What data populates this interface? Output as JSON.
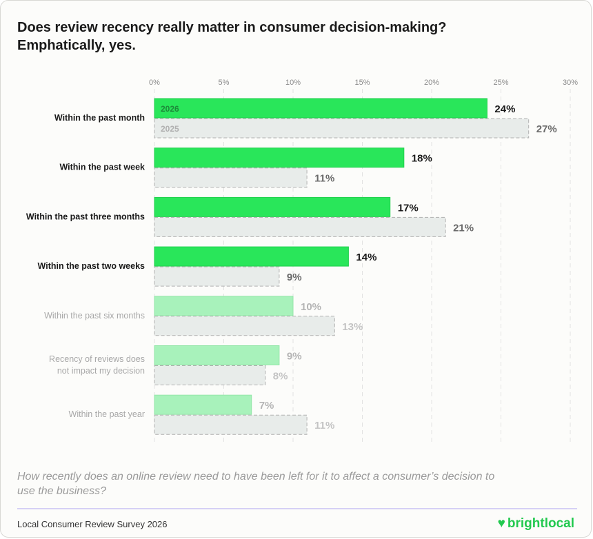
{
  "title_line1": "Does review recency really matter in consumer decision-making?",
  "title_line2": "Emphatically, yes.",
  "question": "How recently does an online review need to have been left for it to affect a consumer’s decision to use the business?",
  "source": "Local Consumer Review Survey 2026",
  "logo": "brightlocal",
  "colors": {
    "bar2026": "#29e65a",
    "bar2026_faded": "#a8f2bb",
    "bar2025": "#e8ecea",
    "bar2025_border": "#b0b0b0",
    "logo": "#22c94f"
  },
  "chart_data": {
    "type": "bar",
    "orientation": "horizontal",
    "categories": [
      "Within the past month",
      "Within the past week",
      "Within the past three months",
      "Within the past two weeks",
      "Within the past six months",
      "Recency of reviews does not impact my decision",
      "Within the past year"
    ],
    "highlighted": [
      true,
      true,
      true,
      true,
      false,
      false,
      false
    ],
    "series": [
      {
        "name": "2026",
        "values": [
          24,
          18,
          17,
          14,
          10,
          9,
          7
        ]
      },
      {
        "name": "2025",
        "values": [
          27,
          11,
          21,
          9,
          13,
          8,
          11
        ]
      }
    ],
    "xlim": [
      0,
      30
    ],
    "xticks": [
      0,
      5,
      10,
      15,
      20,
      25,
      30
    ],
    "tick_suffix": "%",
    "grid": true
  }
}
